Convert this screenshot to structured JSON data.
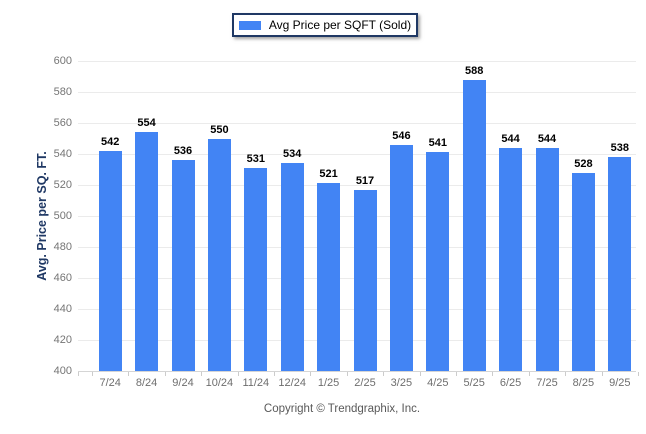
{
  "legend": {
    "label": "Avg Price per SQFT (Sold)",
    "swatch_color": "#4284f4"
  },
  "footer": {
    "copyright": "Copyright © Trendgraphix, Inc."
  },
  "colors": {
    "bar": "#4284f4",
    "axis_title": "#1f3864",
    "tick_label": "#6e6e6e",
    "gridline": "#ebebeb"
  },
  "chart_data": {
    "type": "bar",
    "title": "",
    "xlabel": "",
    "ylabel": "Avg. Price per SQ. FT.",
    "categories": [
      "7/24",
      "8/24",
      "9/24",
      "10/24",
      "11/24",
      "12/24",
      "1/25",
      "2/25",
      "3/25",
      "4/25",
      "5/25",
      "6/25",
      "7/25",
      "8/25",
      "9/25"
    ],
    "series": [
      {
        "name": "Avg Price per SQFT (Sold)",
        "color": "#4284f4",
        "values": [
          542,
          554,
          536,
          550,
          531,
          534,
          521,
          517,
          546,
          541,
          588,
          544,
          544,
          528,
          538
        ]
      }
    ],
    "ylim": [
      400,
      600
    ],
    "ytick_step": 20,
    "grid": "horizontal",
    "legend_position": "top-center",
    "value_labels": true
  }
}
